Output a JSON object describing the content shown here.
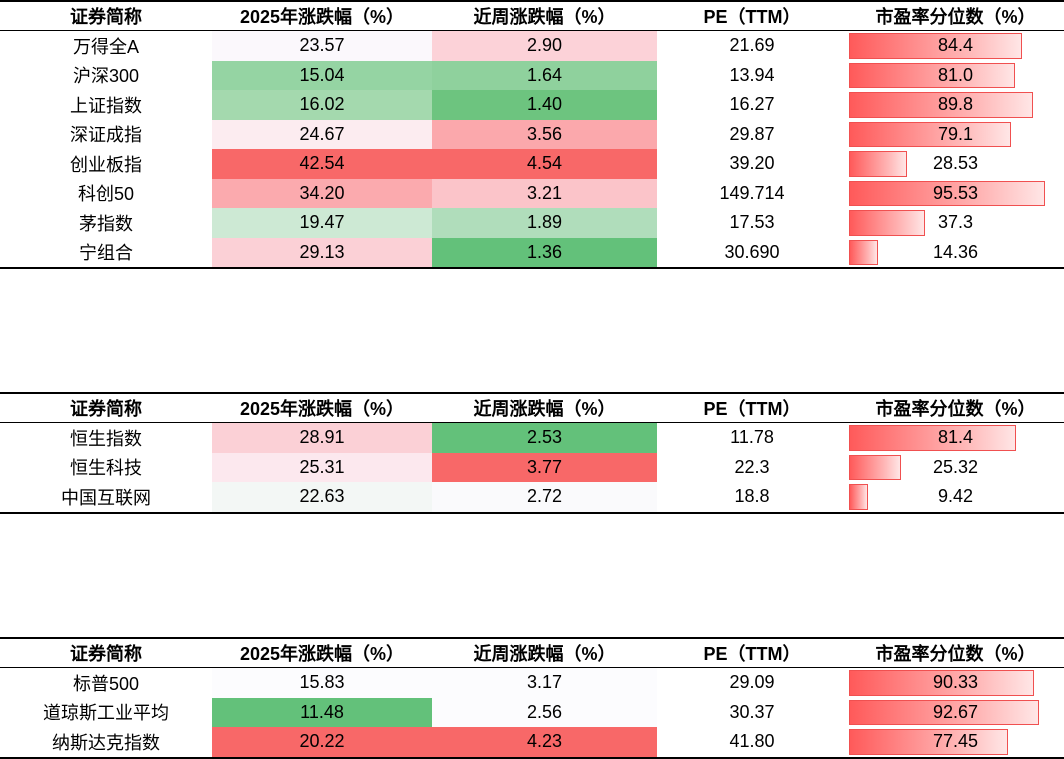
{
  "headers": [
    "证券简称",
    "2025年涨跌幅（%）",
    "近周涨跌幅（%）",
    "PE（TTM）",
    "市盈率分位数（%）"
  ],
  "tables": [
    {
      "rows": [
        {
          "name": "万得全A",
          "ytd": "23.57",
          "week": "2.90",
          "pe": "21.69",
          "pct": "84.4",
          "pct_value": 84.4,
          "ytd_color": "#fbf8fc",
          "week_color": "#fcd2d8"
        },
        {
          "name": "沪深300",
          "ytd": "15.04",
          "week": "1.64",
          "pe": "13.94",
          "pct": "81.0",
          "pct_value": 81.0,
          "ytd_color": "#95d4a3",
          "week_color": "#8fd19d"
        },
        {
          "name": "上证指数",
          "ytd": "16.02",
          "week": "1.40",
          "pe": "16.27",
          "pct": "89.8",
          "pct_value": 89.8,
          "ytd_color": "#a4d9ae",
          "week_color": "#6dc47f"
        },
        {
          "name": "深证成指",
          "ytd": "24.67",
          "week": "3.56",
          "pe": "29.87",
          "pct": "79.1",
          "pct_value": 79.1,
          "ytd_color": "#fcecf0",
          "week_color": "#fba8ac"
        },
        {
          "name": "创业板指",
          "ytd": "42.54",
          "week": "4.54",
          "pe": "39.20",
          "pct": "28.53",
          "pct_value": 28.53,
          "ytd_color": "#f86868",
          "week_color": "#f86868"
        },
        {
          "name": "科创50",
          "ytd": "34.20",
          "week": "3.21",
          "pe": "149.714",
          "pct": "95.53",
          "pct_value": 95.53,
          "ytd_color": "#fbaaae",
          "week_color": "#fbc4c9"
        },
        {
          "name": "茅指数",
          "ytd": "19.47",
          "week": "1.89",
          "pe": "17.53",
          "pct": "37.3",
          "pct_value": 37.3,
          "ytd_color": "#cde9d4",
          "week_color": "#b0ddbb"
        },
        {
          "name": "宁组合",
          "ytd": "29.13",
          "week": "1.36",
          "pe": "30.690",
          "pct": "14.36",
          "pct_value": 14.36,
          "ytd_color": "#fbd0d6",
          "week_color": "#63c17a"
        }
      ]
    },
    {
      "rows": [
        {
          "name": "恒生指数",
          "ytd": "28.91",
          "week": "2.53",
          "pe": "11.78",
          "pct": "81.4",
          "pct_value": 81.4,
          "ytd_color": "#fbd0d6",
          "week_color": "#63c17a"
        },
        {
          "name": "恒生科技",
          "ytd": "25.31",
          "week": "3.77",
          "pe": "22.3",
          "pct": "25.32",
          "pct_value": 25.32,
          "ytd_color": "#fce8ee",
          "week_color": "#f86868"
        },
        {
          "name": "中国互联网",
          "ytd": "22.63",
          "week": "2.72",
          "pe": "18.8",
          "pct": "9.42",
          "pct_value": 9.42,
          "ytd_color": "#f3f7f5",
          "week_color": "#fafafc"
        }
      ]
    },
    {
      "rows": [
        {
          "name": "标普500",
          "ytd": "15.83",
          "week": "3.17",
          "pe": "29.09",
          "pct": "90.33",
          "pct_value": 90.33,
          "ytd_color": "#fcfcfe",
          "week_color": "#fcfcfe"
        },
        {
          "name": "道琼斯工业平均",
          "ytd": "11.48",
          "week": "2.56",
          "pe": "30.37",
          "pct": "92.67",
          "pct_value": 92.67,
          "ytd_color": "#63c17a",
          "week_color": "#fcfcfe"
        },
        {
          "name": "纳斯达克指数",
          "ytd": "20.22",
          "week": "4.23",
          "pe": "41.80",
          "pct": "77.45",
          "pct_value": 77.45,
          "ytd_color": "#f86868",
          "week_color": "#f86868"
        }
      ]
    }
  ]
}
